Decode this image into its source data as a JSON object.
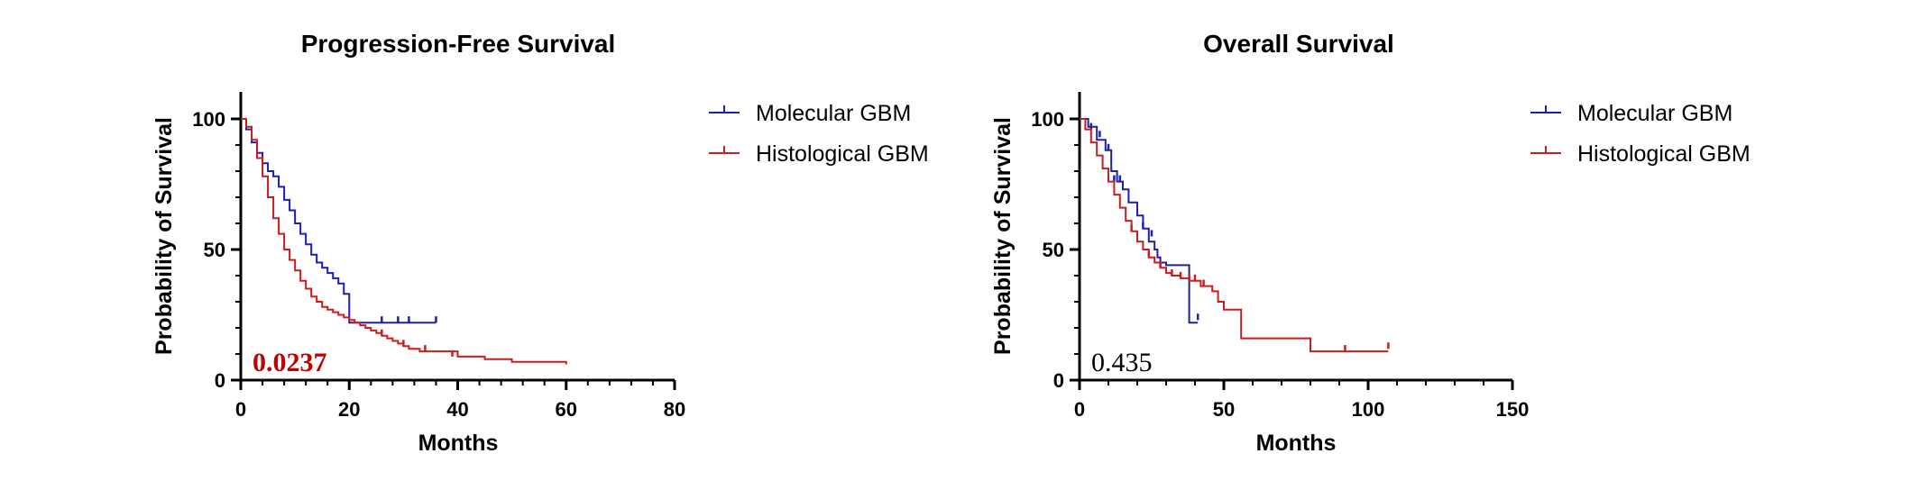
{
  "chart_data": [
    {
      "type": "line",
      "title": "Progression-Free Survival",
      "xlabel": "Months",
      "ylabel": "Probability of Survival",
      "xlim": [
        0,
        80
      ],
      "ylim": [
        0,
        100
      ],
      "xticks": [
        0,
        20,
        40,
        60,
        80
      ],
      "yticks": [
        0,
        50,
        100
      ],
      "legend": "top-right",
      "annotation": {
        "text": "0.0237",
        "color": "#c00000",
        "bold": true
      },
      "series": [
        {
          "name": "Molecular GBM",
          "color": "#1f1fa8",
          "x": [
            0,
            1,
            2,
            3,
            4,
            5,
            6,
            7,
            8,
            9,
            10,
            11,
            12,
            13,
            14,
            15,
            16,
            17,
            18,
            19,
            20,
            36
          ],
          "y": [
            100,
            96,
            91,
            87,
            83,
            80,
            78,
            74,
            69,
            65,
            60,
            56,
            52,
            48,
            45,
            43,
            41,
            39,
            37,
            33,
            22,
            22
          ],
          "censored": [
            [
              26,
              22
            ],
            [
              29,
              22
            ],
            [
              31,
              22
            ],
            [
              36,
              22
            ]
          ]
        },
        {
          "name": "Histological GBM",
          "color": "#c81e1e",
          "x": [
            0,
            1,
            2,
            3,
            4,
            5,
            6,
            7,
            8,
            9,
            10,
            11,
            12,
            13,
            14,
            15,
            16,
            17,
            18,
            19,
            20,
            21,
            22,
            23,
            24,
            25,
            26,
            27,
            28,
            29,
            30,
            31,
            33,
            35,
            40,
            45,
            50,
            55,
            60
          ],
          "y": [
            100,
            97,
            92,
            85,
            78,
            70,
            62,
            56,
            50,
            46,
            42,
            38,
            35,
            32,
            30,
            28,
            27,
            26,
            25,
            24,
            23,
            22,
            21,
            20,
            19,
            18,
            17,
            16,
            15,
            14,
            13,
            12,
            11,
            11,
            9,
            8,
            7,
            7,
            6
          ],
          "censored": [
            [
              26,
              17
            ],
            [
              30,
              13
            ],
            [
              34,
              11
            ],
            [
              39,
              9
            ]
          ]
        }
      ]
    },
    {
      "type": "line",
      "title": "Overall Survival",
      "xlabel": "Months",
      "ylabel": "Probability of Survival",
      "xlim": [
        0,
        150
      ],
      "ylim": [
        0,
        100
      ],
      "xticks": [
        0,
        50,
        100,
        150
      ],
      "yticks": [
        0,
        50,
        100
      ],
      "legend": "top-right",
      "annotation": {
        "text": "0.435",
        "color": "#000000",
        "bold": false
      },
      "series": [
        {
          "name": "Molecular GBM",
          "color": "#1f1fa8",
          "x": [
            0,
            3,
            6,
            9,
            11,
            13,
            15,
            17,
            20,
            22,
            24,
            26,
            27,
            28,
            30,
            32,
            38,
            41
          ],
          "y": [
            100,
            97,
            92,
            88,
            80,
            76,
            73,
            68,
            63,
            58,
            53,
            50,
            47,
            45,
            44,
            44,
            22,
            22
          ],
          "censored": [
            [
              4,
              96
            ],
            [
              7,
              93
            ],
            [
              10,
              88
            ],
            [
              12,
              76
            ],
            [
              14,
              76
            ],
            [
              22,
              58
            ],
            [
              25,
              55
            ],
            [
              41,
              23
            ]
          ]
        },
        {
          "name": "Histological GBM",
          "color": "#c81e1e",
          "x": [
            0,
            2,
            4,
            6,
            8,
            10,
            12,
            14,
            16,
            18,
            20,
            22,
            24,
            26,
            28,
            30,
            32,
            35,
            38,
            42,
            46,
            48,
            50,
            56,
            80,
            107
          ],
          "y": [
            100,
            96,
            91,
            86,
            81,
            76,
            71,
            66,
            61,
            57,
            53,
            50,
            47,
            45,
            43,
            41,
            40,
            39,
            38,
            36,
            34,
            30,
            27,
            16,
            11,
            11
          ],
          "censored": [
            [
              18,
              57
            ],
            [
              24,
              47
            ],
            [
              28,
              43
            ],
            [
              32,
              40
            ],
            [
              35,
              39
            ],
            [
              38,
              38
            ],
            [
              40,
              38
            ],
            [
              43,
              36
            ],
            [
              92,
              11
            ],
            [
              107,
              12
            ]
          ]
        }
      ]
    }
  ]
}
